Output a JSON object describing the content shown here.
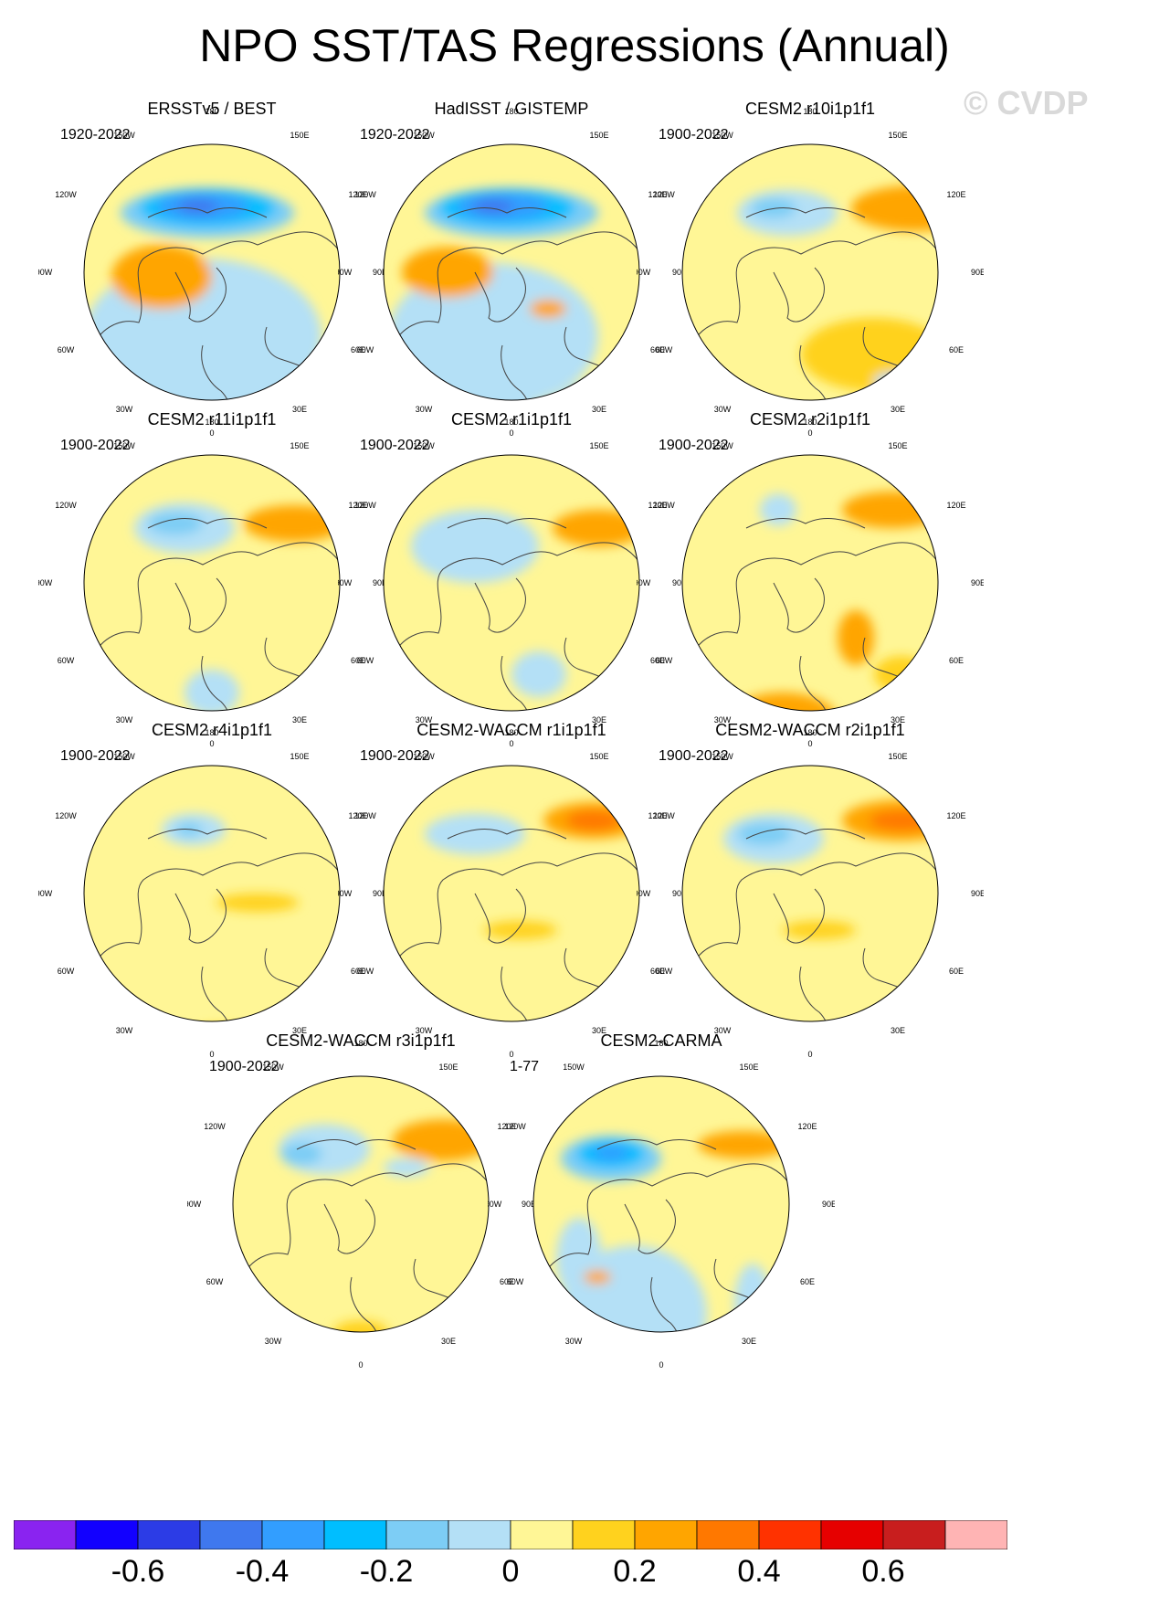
{
  "figure": {
    "title": "NPO SST/TAS Regressions (Annual)",
    "watermark": "© CVDP"
  },
  "chart_data": {
    "type": "polar-stereographic-map-panels",
    "variable": "SST/TAS regression onto NPO",
    "season": "Annual",
    "lon_labels": [
      "180",
      "150E",
      "120E",
      "90E",
      "60E",
      "30E",
      "0",
      "30W",
      "60W",
      "90W",
      "120W",
      "150W"
    ],
    "panels": [
      {
        "title": "ERSSTv5 / BEST",
        "period": "1920-2022",
        "pattern": "a"
      },
      {
        "title": "HadISST / GISTEMP",
        "period": "1920-2022",
        "pattern": "b"
      },
      {
        "title": "CESM2 r10i1p1f1",
        "period": "1900-2022",
        "pattern": "c"
      },
      {
        "title": "CESM2 r11i1p1f1",
        "period": "1900-2022",
        "pattern": "d"
      },
      {
        "title": "CESM2 r1i1p1f1",
        "period": "1900-2022",
        "pattern": "e"
      },
      {
        "title": "CESM2 r2i1p1f1",
        "period": "1900-2022",
        "pattern": "f"
      },
      {
        "title": "CESM2 r4i1p1f1",
        "period": "1900-2022",
        "pattern": "g"
      },
      {
        "title": "CESM2-WACCM r1i1p1f1",
        "period": "1900-2022",
        "pattern": "h"
      },
      {
        "title": "CESM2-WACCM r2i1p1f1",
        "period": "1900-2022",
        "pattern": "i"
      },
      {
        "title": "CESM2-WACCM r3i1p1f1",
        "period": "1900-2022",
        "pattern": "j"
      },
      {
        "title": "CESM2-CARMA",
        "period": "1-77",
        "pattern": "k"
      }
    ],
    "colorbar": {
      "colors": [
        "#8a23f0",
        "#1200ff",
        "#2c3ce6",
        "#3f78ee",
        "#329eff",
        "#00beff",
        "#7dcdf5",
        "#b4e0f6",
        "#fff696",
        "#ffd21e",
        "#ffa500",
        "#ff7800",
        "#ff3200",
        "#e60000",
        "#c81e1e",
        "#ffb4b4"
      ],
      "tick_labels": [
        "-0.6",
        "-0.4",
        "-0.2",
        "0",
        "0.2",
        "0.4",
        "0.6"
      ],
      "tick_values": [
        -0.6,
        -0.4,
        -0.2,
        0,
        0.2,
        0.4,
        0.6
      ]
    }
  },
  "colors": {
    "ocean_neutral": "#fff696",
    "land_outline": "#444444"
  }
}
